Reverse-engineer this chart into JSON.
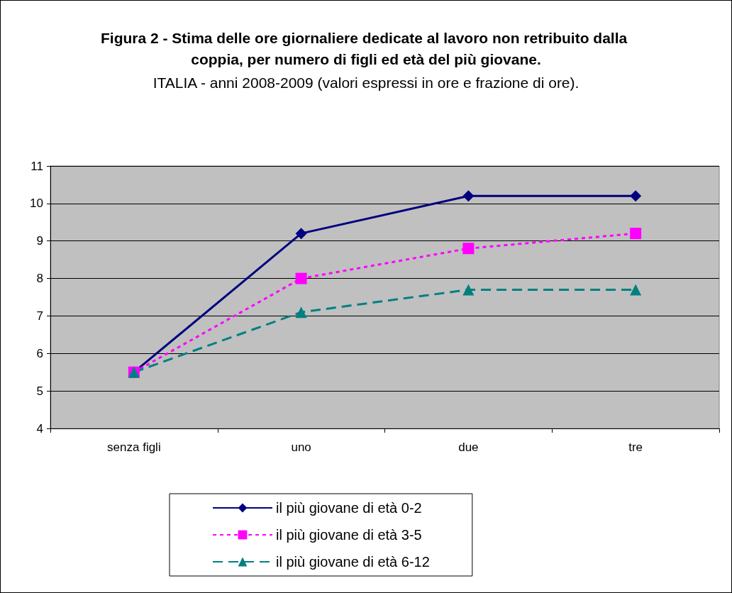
{
  "chart_data": {
    "type": "line",
    "title": "Figura 2 - Stima delle ore giornaliere dedicate al lavoro non retribuito dalla coppia, per numero di figli ed età del più giovane.",
    "subtitle": "ITALIA - anni 2008-2009 (valori espressi in ore e frazione di ore).",
    "categories": [
      "senza figli",
      "uno",
      "due",
      "tre"
    ],
    "series": [
      {
        "name": "il più giovane di età 0-2",
        "color": "#000080",
        "marker": "diamond",
        "line_style": "solid",
        "values": [
          5.5,
          9.2,
          10.2,
          10.2
        ]
      },
      {
        "name": "il più giovane di età 3-5",
        "color": "#ff00ff",
        "marker": "square",
        "line_style": "dotted",
        "values": [
          5.5,
          8.0,
          8.8,
          9.2
        ]
      },
      {
        "name": "il più giovane di età 6-12",
        "color": "#008080",
        "marker": "triangle",
        "line_style": "dashed",
        "values": [
          5.5,
          7.1,
          7.7,
          7.7
        ]
      }
    ],
    "ylim": [
      4,
      11
    ],
    "yticks": [
      4,
      5,
      6,
      7,
      8,
      9,
      10,
      11
    ],
    "grid": "y",
    "legend": "bottom"
  }
}
